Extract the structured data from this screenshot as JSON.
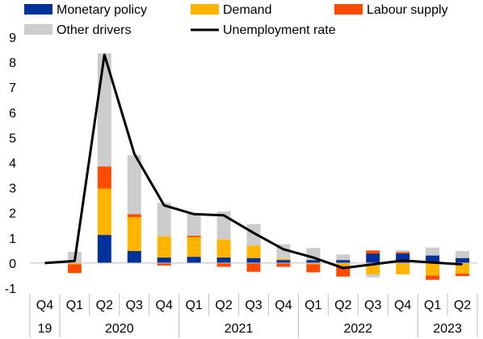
{
  "chart_data": {
    "type": "bar",
    "stacked": true,
    "title": "",
    "xlabel": "",
    "ylabel": "",
    "ylim": [
      -1,
      9
    ],
    "yticks": [
      -1,
      0,
      1,
      2,
      3,
      4,
      5,
      6,
      7,
      8,
      9
    ],
    "grid": false,
    "legend_position": "top",
    "categories": [
      "Q4 19",
      "Q1 20",
      "Q2 20",
      "Q3 20",
      "Q4 20",
      "Q1 21",
      "Q2 21",
      "Q3 21",
      "Q4 21",
      "Q1 22",
      "Q2 22",
      "Q3 22",
      "Q4 22",
      "Q1 23",
      "Q2 23"
    ],
    "quarter_labels": [
      "Q4",
      "Q1",
      "Q2",
      "Q3",
      "Q4",
      "Q1",
      "Q2",
      "Q3",
      "Q4",
      "Q1",
      "Q2",
      "Q3",
      "Q4",
      "Q1",
      "Q2"
    ],
    "year_groups": [
      {
        "label": "19",
        "start": 0,
        "end": 0
      },
      {
        "label": "2020",
        "start": 1,
        "end": 4
      },
      {
        "label": "2021",
        "start": 5,
        "end": 8
      },
      {
        "label": "2022",
        "start": 9,
        "end": 12
      },
      {
        "label": "2023",
        "start": 13,
        "end": 14
      }
    ],
    "series": [
      {
        "name": "Monetary policy",
        "kind": "bar",
        "color": "#003299",
        "values": [
          0,
          0.0,
          1.12,
          0.48,
          0.22,
          0.25,
          0.22,
          0.2,
          0.12,
          0.12,
          0.12,
          0.38,
          0.38,
          0.3,
          0.2
        ]
      },
      {
        "name": "Demand",
        "kind": "bar",
        "color": "#FFB400",
        "values": [
          0,
          -0.05,
          1.85,
          1.35,
          0.85,
          0.78,
          0.72,
          0.5,
          0.05,
          -0.05,
          -0.12,
          -0.45,
          -0.45,
          -0.5,
          -0.42
        ]
      },
      {
        "name": "Labour supply",
        "kind": "bar",
        "color": "#FF4B00",
        "values": [
          0,
          -0.35,
          0.88,
          0.12,
          -0.1,
          0.06,
          -0.15,
          -0.35,
          -0.15,
          -0.32,
          -0.42,
          0.12,
          0.05,
          -0.17,
          -0.1
        ]
      },
      {
        "name": "Other drivers",
        "kind": "bar",
        "color": "#CCCCCC",
        "values": [
          0,
          0.45,
          4.5,
          2.35,
          1.33,
          0.9,
          1.12,
          0.85,
          0.58,
          0.48,
          0.22,
          -0.12,
          0.08,
          0.32,
          0.28
        ]
      },
      {
        "name": "Unemployment rate",
        "kind": "line",
        "color": "#000000",
        "values": [
          0.0,
          0.08,
          8.3,
          4.35,
          2.3,
          1.95,
          1.9,
          1.2,
          0.55,
          0.22,
          -0.2,
          -0.05,
          0.1,
          0.02,
          -0.05
        ]
      }
    ]
  }
}
